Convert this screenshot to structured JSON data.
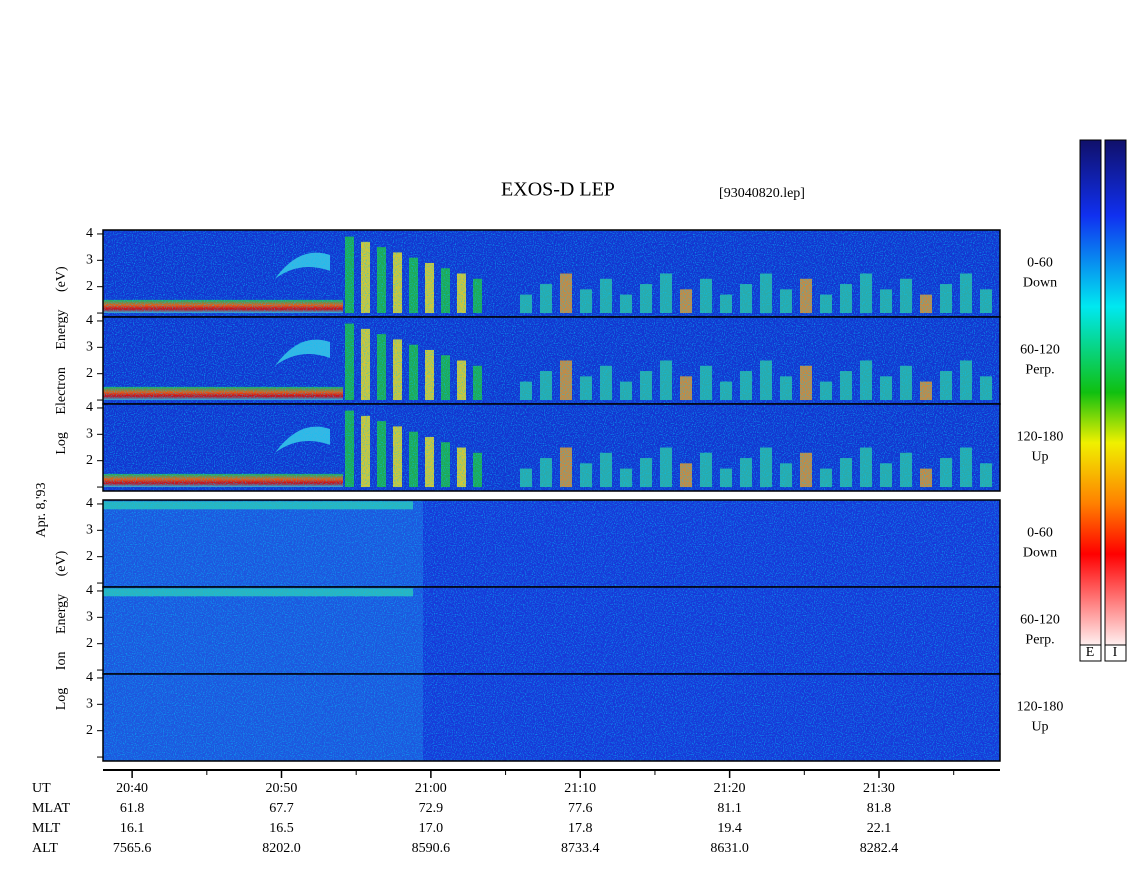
{
  "title": "EXOS-D LEP",
  "file": "[93040820.lep]",
  "chart_data": {
    "type": "spectrogram",
    "xlim": [
      38.05,
      98.1
    ],
    "xticks": [
      {
        "value": 40,
        "label": "20:40"
      },
      {
        "value": 50,
        "label": "20:50"
      },
      {
        "value": 60,
        "label": "21:00"
      },
      {
        "value": 70,
        "label": "21:10"
      },
      {
        "value": 80,
        "label": "21:20"
      },
      {
        "value": 90,
        "label": "21:30"
      }
    ],
    "minor_xticks": [
      45,
      55,
      65,
      75,
      85,
      95
    ],
    "ylim": [
      0.85,
      4.15
    ],
    "yticks": [
      {
        "value": 1,
        "label": null
      },
      2,
      3,
      4
    ],
    "date_label": "Apr. 8,'93",
    "groups": [
      {
        "ylabel": "Log Electron Energy (eV)",
        "panels": [
          {
            "label": [
              "0-60",
              "Down"
            ]
          },
          {
            "label": [
              "60-120",
              "Perp."
            ]
          },
          {
            "label": [
              "120-180",
              "Up"
            ]
          }
        ]
      },
      {
        "ylabel": "Log Ion Energy (eV)",
        "panels": [
          {
            "label": [
              "0-60",
              "Down"
            ]
          },
          {
            "label": [
              "60-120",
              "Perp."
            ]
          },
          {
            "label": [
              "120-180",
              "Up"
            ]
          }
        ]
      }
    ]
  },
  "ephemeris": {
    "time_row": "UT",
    "rows": [
      {
        "name": "MLAT",
        "values": [
          "61.8",
          "67.7",
          "72.9",
          "77.6",
          "81.1",
          "81.8"
        ]
      },
      {
        "name": "MLT",
        "values": [
          "16.1",
          "16.5",
          "17.0",
          "17.8",
          "19.4",
          "22.1"
        ]
      },
      {
        "name": "ALT",
        "values": [
          "7565.6",
          "8202.0",
          "8590.6",
          "8733.4",
          "8631.0",
          "8282.4"
        ]
      }
    ]
  },
  "colorbar": {
    "labels": [
      "E",
      "I"
    ]
  }
}
